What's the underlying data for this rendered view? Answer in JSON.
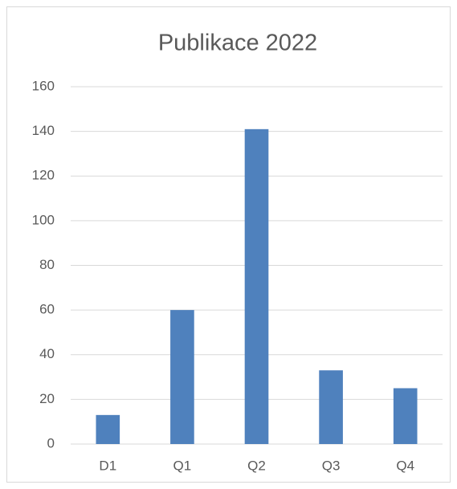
{
  "chart_data": {
    "type": "bar",
    "title": "Publikace 2022",
    "categories": [
      "D1",
      "Q1",
      "Q2",
      "Q3",
      "Q4"
    ],
    "values": [
      13,
      60,
      141,
      33,
      25
    ],
    "color": "#4f81bd",
    "ylim": [
      0,
      160
    ],
    "yticks": [
      0,
      20,
      40,
      60,
      80,
      100,
      120,
      140,
      160
    ],
    "grid": true
  }
}
